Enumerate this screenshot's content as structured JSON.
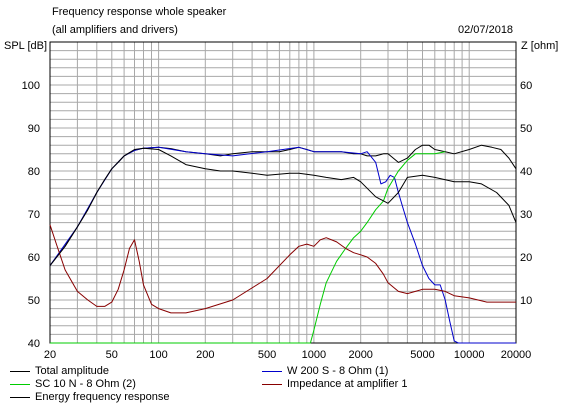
{
  "header": {
    "title": "Frequency response whole speaker",
    "subtitle": "(all amplifiers and drivers)",
    "date": "02/07/2018"
  },
  "chart_data": {
    "type": "line",
    "xscale": "log",
    "xlim": [
      20,
      20000
    ],
    "ylim": [
      40,
      110
    ],
    "y2lim": [
      0,
      70
    ],
    "ylabel": "SPL [dB]",
    "y2label": "Z [ohm]",
    "grid": true,
    "x_ticks": [
      "20",
      "50",
      "100",
      "200",
      "500",
      "1000",
      "2000",
      "5000",
      "10000",
      "20000"
    ],
    "y_ticks": [
      "40",
      "50",
      "60",
      "70",
      "80",
      "90",
      "100"
    ],
    "y2_ticks": [
      "10",
      "20",
      "30",
      "40",
      "50",
      "60"
    ],
    "series": [
      {
        "name": "Total amplitude",
        "color": "#000000",
        "axis": "left",
        "x": [
          20,
          25,
          30,
          35,
          40,
          45,
          50,
          55,
          60,
          70,
          80,
          100,
          120,
          150,
          200,
          250,
          300,
          400,
          500,
          600,
          700,
          800,
          900,
          1000,
          1200,
          1500,
          1800,
          2000,
          2200,
          2500,
          2800,
          3000,
          3500,
          4000,
          4500,
          5000,
          5500,
          6000,
          7000,
          8000,
          10000,
          12000,
          14000,
          16000,
          18000,
          20000
        ],
        "y": [
          58,
          62.5,
          67,
          71,
          75,
          78,
          80.5,
          82,
          83.5,
          84.8,
          85.3,
          85.5,
          85.2,
          84.5,
          84,
          83.5,
          84,
          84.5,
          84.5,
          84.5,
          85,
          85.5,
          85,
          84.5,
          84.5,
          84.5,
          84,
          84,
          83.5,
          83.5,
          84,
          84,
          82,
          83,
          85,
          86,
          86,
          85,
          84.5,
          84,
          85,
          86,
          85.5,
          85,
          83,
          80.5
        ]
      },
      {
        "name": "W 200 S - 8 Ohm (1)",
        "color": "#0000cc",
        "axis": "left",
        "x": [
          20,
          30,
          40,
          50,
          60,
          70,
          80,
          100,
          150,
          200,
          300,
          500,
          800,
          1000,
          1500,
          2000,
          2200,
          2500,
          2700,
          2900,
          3100,
          3300,
          3500,
          3700,
          4000,
          4500,
          5000,
          5500,
          6000,
          6500,
          7000,
          7500,
          8000,
          8500,
          9000,
          10000,
          12000,
          15000,
          20000
        ],
        "y": [
          58,
          67,
          75,
          80.5,
          83.5,
          84.8,
          85.3,
          85.5,
          84.5,
          84,
          83.5,
          84.5,
          85.5,
          84.5,
          84.5,
          84,
          84.5,
          82,
          77,
          77.5,
          79,
          78.5,
          75,
          72,
          68,
          63,
          58,
          55,
          53.5,
          53.5,
          50,
          45,
          40.5,
          40,
          40,
          40,
          40,
          40,
          40
        ]
      },
      {
        "name": "SC 10 N - 8 Ohm (2)",
        "color": "#00cc00",
        "axis": "left",
        "x": [
          20,
          100,
          500,
          900,
          950,
          1000,
          1100,
          1200,
          1400,
          1600,
          1800,
          2000,
          2200,
          2500,
          2800,
          3000,
          3500,
          4000,
          4500,
          5000,
          6000,
          7000
        ],
        "y": [
          40,
          40,
          40,
          40,
          40,
          43,
          49,
          54,
          59,
          62,
          64.5,
          66,
          68,
          71,
          73,
          76,
          80,
          82.5,
          84,
          84,
          84,
          84.5
        ]
      },
      {
        "name": "Impedance at amplifier 1",
        "color": "#880000",
        "axis": "right",
        "x": [
          20,
          22,
          25,
          30,
          35,
          40,
          45,
          50,
          55,
          60,
          65,
          70,
          75,
          80,
          90,
          100,
          120,
          150,
          200,
          300,
          500,
          700,
          800,
          900,
          1000,
          1100,
          1200,
          1400,
          1600,
          1800,
          2000,
          2200,
          2500,
          2800,
          3000,
          3500,
          4000,
          4500,
          5000,
          6000,
          7000,
          8000,
          10000,
          13000,
          16000,
          20000
        ],
        "y": [
          27.5,
          23,
          17,
          12,
          10,
          8.5,
          8.5,
          9.5,
          12.5,
          17,
          22,
          24,
          19,
          13.5,
          9,
          8,
          7,
          7,
          8,
          10,
          15,
          20.5,
          22.5,
          23,
          22.5,
          24,
          24.5,
          23.5,
          22,
          21,
          20.5,
          20,
          18.5,
          16,
          14,
          12,
          11.5,
          12,
          12.5,
          12.5,
          12,
          11,
          10.5,
          9.5,
          9.5,
          9.5
        ]
      },
      {
        "name": "Energy frequency response",
        "color": "#000000",
        "axis": "left",
        "x": [
          20,
          25,
          30,
          35,
          40,
          45,
          50,
          60,
          70,
          80,
          100,
          120,
          150,
          200,
          250,
          300,
          400,
          500,
          700,
          800,
          1000,
          1200,
          1500,
          1800,
          2000,
          2500,
          3000,
          3500,
          4000,
          5000,
          6000,
          8000,
          10000,
          12000,
          15000,
          18000,
          20000
        ],
        "y": [
          58,
          62.5,
          67,
          71,
          75,
          78,
          80.5,
          83.5,
          85,
          85.3,
          85,
          83.5,
          81.5,
          80.5,
          80,
          80,
          79.5,
          79,
          79.5,
          79.5,
          79,
          78.5,
          78,
          78.5,
          77.5,
          74,
          72.5,
          75,
          78.5,
          79,
          78.5,
          77.5,
          77.5,
          77,
          75,
          72,
          68
        ]
      }
    ]
  }
}
